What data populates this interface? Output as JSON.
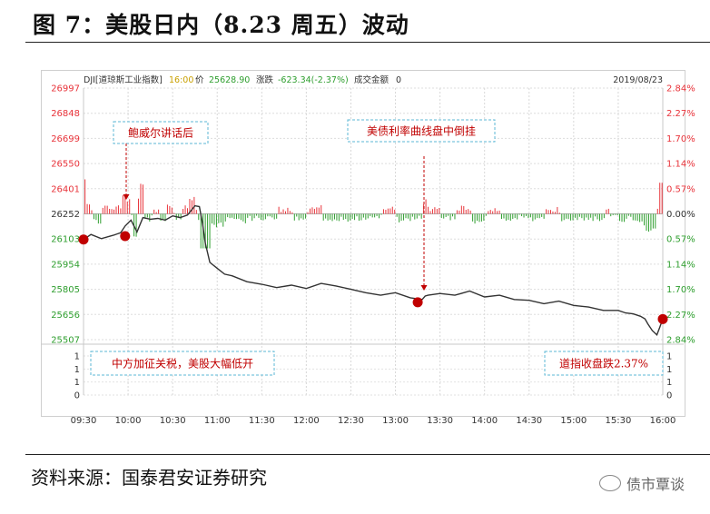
{
  "figure": {
    "title": "图 7：美股日内（8.23 周五）波动",
    "source": "资料来源：国泰君安证券研究",
    "brand": "债市覃谈",
    "brand_icon": "wechat-icon"
  },
  "info_bar": {
    "symbol": "DJI[道琼斯工业指数]",
    "time": "16:00",
    "price_label": "价",
    "price": "25628.90",
    "change_label": "涨跌",
    "change": "-623.34(-2.37%)",
    "turnover_label": "成交金额",
    "turnover": "0",
    "date": "2019/08/23"
  },
  "colors": {
    "up": "#e8333a",
    "down": "#2e9e2e",
    "line": "#333333",
    "annotation": "#c00000",
    "box": "#5bb7d5"
  },
  "annotations": [
    {
      "text": "鲍威尔讲话后"
    },
    {
      "text": "美债利率曲线盘中倒挂"
    },
    {
      "text": "中方加征关税，美股大幅低开"
    },
    {
      "text": "道指收盘跌2.37%"
    }
  ],
  "chart_data": {
    "type": "line",
    "title": "",
    "xlabel": "",
    "ylabel": "",
    "prev_close": 26252,
    "ylim": [
      25507,
      26997
    ],
    "y_ticks": [
      "26997",
      "26848",
      "26699",
      "26550",
      "26401",
      "26252",
      "26103",
      "25954",
      "25805",
      "25656",
      "25507"
    ],
    "y_ticks_right": [
      "2.84%",
      "2.27%",
      "1.70%",
      "1.14%",
      "0.57%",
      "0.00%",
      "0.57%",
      "1.14%",
      "1.70%",
      "2.27%",
      "2.84%"
    ],
    "volume_ticks": [
      "1",
      "1",
      "1",
      "0"
    ],
    "volume_ticks_right": [
      "1",
      "1",
      "1",
      "0"
    ],
    "x_ticks": [
      "09:30",
      "10:00",
      "10:30",
      "11:00",
      "11:30",
      "12:00",
      "12:30",
      "13:00",
      "13:30",
      "14:00",
      "14:30",
      "15:00",
      "15:30",
      "16:00"
    ],
    "x_minutes": [
      0,
      390
    ],
    "series": [
      {
        "x": [
          0,
          5,
          12,
          20,
          25,
          28,
          32,
          36,
          40,
          45,
          50,
          55,
          60,
          65,
          70,
          75,
          78,
          80,
          82,
          85,
          90,
          95,
          100,
          110,
          120,
          130,
          140,
          150,
          160,
          170,
          180,
          190,
          200,
          210,
          220,
          228,
          230,
          232,
          240,
          250,
          260,
          270,
          280,
          290,
          300,
          310,
          320,
          330,
          340,
          350,
          360,
          365,
          370,
          375,
          378,
          380,
          383,
          386,
          388,
          390
        ],
        "y": [
          26100,
          26130,
          26105,
          26125,
          26140,
          26180,
          26215,
          26145,
          26230,
          26220,
          26225,
          26215,
          26240,
          26230,
          26245,
          26300,
          26295,
          26200,
          26080,
          25965,
          25930,
          25895,
          25885,
          25850,
          25835,
          25815,
          25830,
          25810,
          25840,
          25825,
          25805,
          25785,
          25770,
          25785,
          25755,
          25745,
          25765,
          25770,
          25780,
          25770,
          25795,
          25760,
          25770,
          25745,
          25740,
          25720,
          25735,
          25710,
          25700,
          25680,
          25680,
          25665,
          25660,
          25645,
          25630,
          25600,
          25560,
          25535,
          25580,
          25629
        ]
      }
    ],
    "markers": [
      {
        "x": 0,
        "y": 26100
      },
      {
        "x": 28,
        "y": 26120
      },
      {
        "x": 225,
        "y": 25728
      },
      {
        "x": 390,
        "y": 25629
      }
    ]
  }
}
